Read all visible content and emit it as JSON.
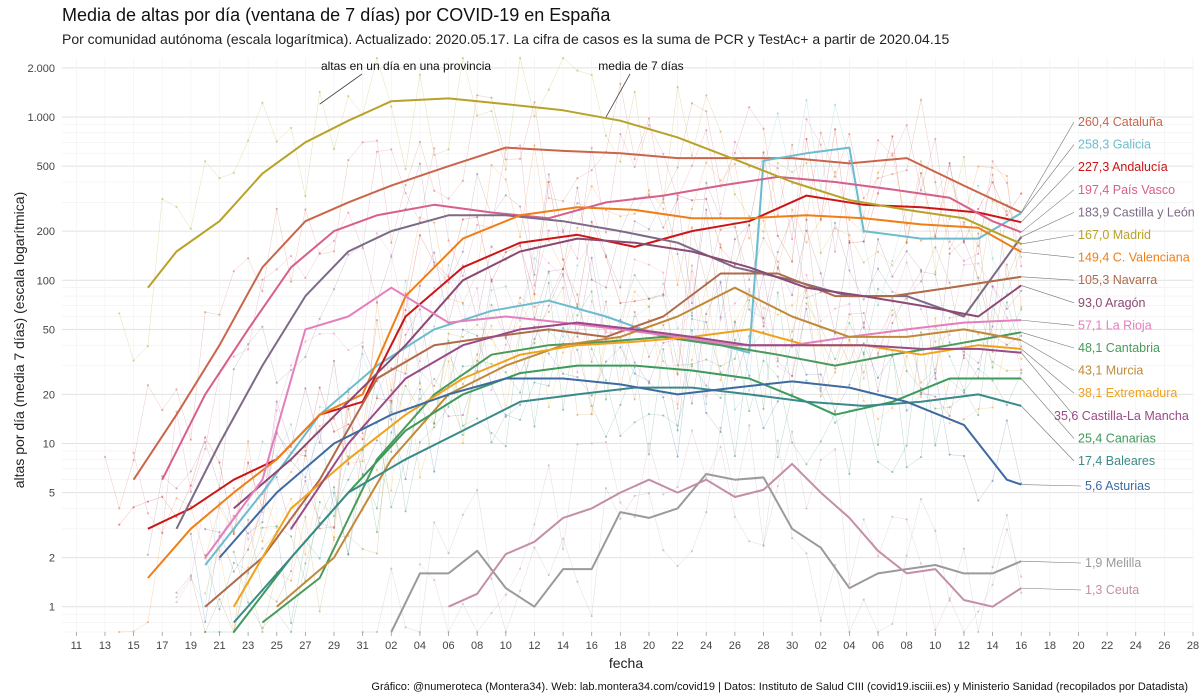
{
  "chart_data": {
    "type": "line",
    "title": "Media de altas por día (ventana de 7 días) por COVID-19 en España",
    "subtitle": "Por comunidad autónoma (escala logarítmica). Actualizado: 2020.05.17. La cifra de casos es la suma de PCR y TestAc+ a partir de 2020.04.15",
    "xlabel": "fecha",
    "ylabel": "altas por día (media 7 días) (escala logarítmica)",
    "caption": "Gráfico: @numeroteca (Montera34). Web: lab.montera34.com/covid19 | Datos: Instituto de Salud CIII (covid19.isciii.es) y Ministerio Sanidad (recopilados por Datadista)",
    "y_scale": "log",
    "ylim": [
      0.7,
      2300
    ],
    "xlim": [
      "2020-03-10",
      "2020-05-28"
    ],
    "grid": true,
    "x_tick_labels": [
      "11",
      "13",
      "15",
      "17",
      "19",
      "21",
      "23",
      "25",
      "27",
      "29",
      "31",
      "02",
      "04",
      "06",
      "08",
      "10",
      "12",
      "14",
      "16",
      "18",
      "20",
      "22",
      "24",
      "26",
      "28",
      "30",
      "02",
      "04",
      "06",
      "08",
      "10",
      "12",
      "14",
      "16",
      "18",
      "20",
      "22",
      "24",
      "26",
      "28"
    ],
    "x_tick_dates": [
      "2020-03-11",
      "2020-03-13",
      "2020-03-15",
      "2020-03-17",
      "2020-03-19",
      "2020-03-21",
      "2020-03-23",
      "2020-03-25",
      "2020-03-27",
      "2020-03-29",
      "2020-03-31",
      "2020-04-02",
      "2020-04-04",
      "2020-04-06",
      "2020-04-08",
      "2020-04-10",
      "2020-04-12",
      "2020-04-14",
      "2020-04-16",
      "2020-04-18",
      "2020-04-20",
      "2020-04-22",
      "2020-04-24",
      "2020-04-26",
      "2020-04-28",
      "2020-04-30",
      "2020-05-02",
      "2020-05-04",
      "2020-05-06",
      "2020-05-08",
      "2020-05-10",
      "2020-05-12",
      "2020-05-14",
      "2020-05-16",
      "2020-05-18",
      "2020-05-20",
      "2020-05-22",
      "2020-05-24",
      "2020-05-26",
      "2020-05-28"
    ],
    "y_ticks": [
      1,
      2,
      5,
      10,
      20,
      50,
      100,
      200,
      500,
      1000,
      2000
    ],
    "y_tick_labels": [
      "1",
      "2",
      "5",
      "10",
      "20",
      "50",
      "100",
      "200",
      "500",
      "1.000",
      "2.000"
    ],
    "annotations": [
      {
        "text": "altas en un día en una provincia",
        "x": "2020-03-28",
        "y": 1200
      },
      {
        "text": "media de 7 días",
        "x": "2020-04-17",
        "y": 1000
      }
    ],
    "series": [
      {
        "label": "260,4 Cataluña",
        "color": "#c9654a",
        "x": [
          "2020-03-15",
          "2020-03-18",
          "2020-03-21",
          "2020-03-24",
          "2020-03-27",
          "2020-03-30",
          "2020-04-02",
          "2020-04-06",
          "2020-04-10",
          "2020-04-14",
          "2020-04-18",
          "2020-04-22",
          "2020-04-26",
          "2020-04-30",
          "2020-05-04",
          "2020-05-08",
          "2020-05-12",
          "2020-05-16"
        ],
        "y": [
          6,
          15,
          40,
          120,
          230,
          300,
          380,
          500,
          650,
          620,
          600,
          560,
          560,
          560,
          520,
          560,
          380,
          260
        ]
      },
      {
        "label": "258,3 Galicia",
        "color": "#6cbccf",
        "x": [
          "2020-03-20",
          "2020-03-24",
          "2020-03-28",
          "2020-04-01",
          "2020-04-05",
          "2020-04-09",
          "2020-04-13",
          "2020-04-17",
          "2020-04-21",
          "2020-04-25",
          "2020-04-27",
          "2020-04-28",
          "2020-05-01",
          "2020-05-04",
          "2020-05-05",
          "2020-05-09",
          "2020-05-13",
          "2020-05-16"
        ],
        "y": [
          1.8,
          5,
          15,
          30,
          50,
          65,
          75,
          60,
          45,
          40,
          36,
          540,
          600,
          650,
          200,
          180,
          180,
          258
        ]
      },
      {
        "label": "227,3 Andalucía",
        "color": "#cc1616",
        "x": [
          "2020-03-16",
          "2020-03-19",
          "2020-03-22",
          "2020-03-25",
          "2020-03-28",
          "2020-03-31",
          "2020-04-03",
          "2020-04-07",
          "2020-04-11",
          "2020-04-15",
          "2020-04-19",
          "2020-04-23",
          "2020-04-27",
          "2020-05-01",
          "2020-05-05",
          "2020-05-09",
          "2020-05-13",
          "2020-05-16"
        ],
        "y": [
          3,
          4,
          6,
          8,
          15,
          18,
          60,
          120,
          170,
          190,
          160,
          200,
          230,
          330,
          290,
          280,
          260,
          227
        ]
      },
      {
        "label": "197,4 País Vasco",
        "color": "#d75f8c",
        "x": [
          "2020-03-17",
          "2020-03-20",
          "2020-03-23",
          "2020-03-26",
          "2020-03-29",
          "2020-04-01",
          "2020-04-05",
          "2020-04-09",
          "2020-04-13",
          "2020-04-17",
          "2020-04-21",
          "2020-04-25",
          "2020-04-29",
          "2020-05-03",
          "2020-05-07",
          "2020-05-11",
          "2020-05-14",
          "2020-05-16"
        ],
        "y": [
          6,
          20,
          50,
          120,
          200,
          250,
          290,
          260,
          240,
          300,
          330,
          380,
          430,
          400,
          360,
          320,
          230,
          197
        ]
      },
      {
        "label": "183,9 Castilla y León",
        "color": "#7d6a86",
        "x": [
          "2020-03-18",
          "2020-03-21",
          "2020-03-24",
          "2020-03-27",
          "2020-03-30",
          "2020-04-02",
          "2020-04-06",
          "2020-04-10",
          "2020-04-14",
          "2020-04-18",
          "2020-04-22",
          "2020-04-26",
          "2020-04-30",
          "2020-05-04",
          "2020-05-08",
          "2020-05-12",
          "2020-05-16"
        ],
        "y": [
          3,
          10,
          30,
          80,
          150,
          200,
          250,
          250,
          230,
          200,
          170,
          120,
          100,
          80,
          80,
          60,
          184
        ]
      },
      {
        "label": "167,0 Madrid",
        "color": "#b8a227",
        "x": [
          "2020-03-16",
          "2020-03-18",
          "2020-03-21",
          "2020-03-24",
          "2020-03-27",
          "2020-03-30",
          "2020-04-02",
          "2020-04-06",
          "2020-04-10",
          "2020-04-14",
          "2020-04-18",
          "2020-04-22",
          "2020-04-26",
          "2020-04-30",
          "2020-05-04",
          "2020-05-08",
          "2020-05-12",
          "2020-05-16"
        ],
        "y": [
          90,
          150,
          230,
          450,
          700,
          950,
          1250,
          1300,
          1200,
          1100,
          950,
          750,
          550,
          400,
          310,
          270,
          240,
          167
        ]
      },
      {
        "label": "149,4 C. Valenciana",
        "color": "#f07e16",
        "x": [
          "2020-03-16",
          "2020-03-19",
          "2020-03-22",
          "2020-03-25",
          "2020-03-28",
          "2020-03-31",
          "2020-04-03",
          "2020-04-07",
          "2020-04-11",
          "2020-04-15",
          "2020-04-19",
          "2020-04-23",
          "2020-04-27",
          "2020-05-01",
          "2020-05-05",
          "2020-05-09",
          "2020-05-13",
          "2020-05-16"
        ],
        "y": [
          1.5,
          3,
          5,
          8,
          15,
          20,
          80,
          180,
          250,
          280,
          270,
          240,
          240,
          250,
          240,
          220,
          210,
          149
        ]
      },
      {
        "label": "105,3 Navarra",
        "color": "#b06a4a",
        "x": [
          "2020-03-20",
          "2020-03-24",
          "2020-03-28",
          "2020-04-01",
          "2020-04-05",
          "2020-04-09",
          "2020-04-13",
          "2020-04-17",
          "2020-04-21",
          "2020-04-25",
          "2020-04-29",
          "2020-05-03",
          "2020-05-07",
          "2020-05-11",
          "2020-05-16"
        ],
        "y": [
          1,
          2,
          6,
          25,
          40,
          45,
          50,
          45,
          60,
          110,
          110,
          80,
          80,
          90,
          105
        ]
      },
      {
        "label": "93,0 Aragón",
        "color": "#8a4a73",
        "x": [
          "2020-03-22",
          "2020-03-26",
          "2020-03-30",
          "2020-04-03",
          "2020-04-07",
          "2020-04-11",
          "2020-04-15",
          "2020-04-19",
          "2020-04-23",
          "2020-04-27",
          "2020-05-01",
          "2020-05-05",
          "2020-05-09",
          "2020-05-13",
          "2020-05-16"
        ],
        "y": [
          4,
          8,
          18,
          40,
          100,
          150,
          180,
          170,
          150,
          120,
          90,
          80,
          70,
          60,
          93
        ]
      },
      {
        "label": "57,1 La Rioja",
        "color": "#e47fbd",
        "x": [
          "2020-03-20",
          "2020-03-24",
          "2020-03-27",
          "2020-03-30",
          "2020-04-02",
          "2020-04-06",
          "2020-04-10",
          "2020-04-14",
          "2020-04-18",
          "2020-04-22",
          "2020-04-26",
          "2020-04-30",
          "2020-05-04",
          "2020-05-08",
          "2020-05-12",
          "2020-05-16"
        ],
        "y": [
          2,
          6,
          50,
          60,
          90,
          55,
          60,
          55,
          50,
          45,
          40,
          40,
          45,
          50,
          55,
          57
        ]
      },
      {
        "label": "48,1 Cantabria",
        "color": "#4a9a5a",
        "x": [
          "2020-03-24",
          "2020-03-28",
          "2020-04-01",
          "2020-04-05",
          "2020-04-09",
          "2020-04-13",
          "2020-04-17",
          "2020-04-21",
          "2020-04-25",
          "2020-04-29",
          "2020-05-03",
          "2020-05-07",
          "2020-05-11",
          "2020-05-16"
        ],
        "y": [
          0.8,
          1.5,
          8,
          20,
          35,
          40,
          42,
          45,
          40,
          35,
          30,
          35,
          40,
          48
        ]
      },
      {
        "label": "43,1 Murcia",
        "color": "#c08a3a",
        "x": [
          "2020-03-25",
          "2020-03-29",
          "2020-04-02",
          "2020-04-06",
          "2020-04-10",
          "2020-04-14",
          "2020-04-18",
          "2020-04-22",
          "2020-04-26",
          "2020-04-30",
          "2020-05-04",
          "2020-05-08",
          "2020-05-12",
          "2020-05-16"
        ],
        "y": [
          1,
          2,
          8,
          20,
          30,
          40,
          45,
          60,
          90,
          60,
          45,
          45,
          50,
          43
        ]
      },
      {
        "label": "38,1 Extremadura",
        "color": "#f0a21a",
        "x": [
          "2020-03-22",
          "2020-03-26",
          "2020-03-30",
          "2020-04-03",
          "2020-04-07",
          "2020-04-11",
          "2020-04-15",
          "2020-04-19",
          "2020-04-23",
          "2020-04-27",
          "2020-05-01",
          "2020-05-05",
          "2020-05-09",
          "2020-05-13",
          "2020-05-16"
        ],
        "y": [
          1,
          4,
          8,
          15,
          25,
          35,
          40,
          42,
          45,
          50,
          40,
          40,
          35,
          40,
          38
        ]
      },
      {
        "label": "35,6 Castilla-La Mancha",
        "color": "#9a4a88",
        "x": [
          "2020-03-26",
          "2020-03-30",
          "2020-04-03",
          "2020-04-07",
          "2020-04-11",
          "2020-04-15",
          "2020-04-19",
          "2020-04-23",
          "2020-04-27",
          "2020-05-01",
          "2020-05-05",
          "2020-05-09",
          "2020-05-13",
          "2020-05-16"
        ],
        "y": [
          3,
          10,
          25,
          40,
          50,
          55,
          50,
          45,
          40,
          40,
          40,
          38,
          38,
          36
        ]
      },
      {
        "label": "25,4 Canarias",
        "color": "#3d9a5a",
        "x": [
          "2020-03-22",
          "2020-03-26",
          "2020-03-30",
          "2020-04-03",
          "2020-04-07",
          "2020-04-11",
          "2020-04-15",
          "2020-04-19",
          "2020-04-23",
          "2020-04-27",
          "2020-05-01",
          "2020-05-03",
          "2020-05-07",
          "2020-05-11",
          "2020-05-16"
        ],
        "y": [
          0.7,
          2,
          5,
          12,
          20,
          27,
          30,
          30,
          28,
          25,
          18,
          15,
          18,
          25,
          25
        ]
      },
      {
        "label": "17,4 Baleares",
        "color": "#3a8a8a",
        "x": [
          "2020-03-22",
          "2020-03-26",
          "2020-03-30",
          "2020-04-03",
          "2020-04-07",
          "2020-04-11",
          "2020-04-15",
          "2020-04-19",
          "2020-04-23",
          "2020-04-27",
          "2020-05-01",
          "2020-05-05",
          "2020-05-09",
          "2020-05-13",
          "2020-05-16"
        ],
        "y": [
          0.8,
          2,
          5,
          8,
          12,
          18,
          20,
          22,
          22,
          20,
          18,
          17,
          18,
          20,
          17
        ]
      },
      {
        "label": "5,6 Asturias",
        "color": "#3d6aa0",
        "x": [
          "2020-03-21",
          "2020-03-25",
          "2020-03-29",
          "2020-04-02",
          "2020-04-06",
          "2020-04-10",
          "2020-04-14",
          "2020-04-18",
          "2020-04-22",
          "2020-04-26",
          "2020-04-30",
          "2020-05-04",
          "2020-05-08",
          "2020-05-12",
          "2020-05-15",
          "2020-05-16"
        ],
        "y": [
          2,
          5,
          10,
          15,
          20,
          25,
          25,
          23,
          20,
          22,
          24,
          22,
          18,
          13,
          6,
          5.6
        ]
      },
      {
        "label": "1,9 Melilla",
        "color": "#9a9a9a",
        "x": [
          "2020-04-02",
          "2020-04-04",
          "2020-04-06",
          "2020-04-08",
          "2020-04-10",
          "2020-04-12",
          "2020-04-14",
          "2020-04-16",
          "2020-04-18",
          "2020-04-20",
          "2020-04-22",
          "2020-04-24",
          "2020-04-26",
          "2020-04-28",
          "2020-04-30",
          "2020-05-02",
          "2020-05-04",
          "2020-05-06",
          "2020-05-08",
          "2020-05-10",
          "2020-05-12",
          "2020-05-14",
          "2020-05-16"
        ],
        "y": [
          0.7,
          1.6,
          1.6,
          2.2,
          1.3,
          1,
          1.7,
          1.7,
          3.8,
          3.5,
          4,
          6.5,
          6,
          6.2,
          3,
          2.3,
          1.3,
          1.6,
          1.7,
          1.8,
          1.6,
          1.6,
          1.9
        ]
      },
      {
        "label": "1,3 Ceuta",
        "color": "#c48ea8",
        "x": [
          "2020-04-06",
          "2020-04-08",
          "2020-04-10",
          "2020-04-12",
          "2020-04-14",
          "2020-04-16",
          "2020-04-18",
          "2020-04-20",
          "2020-04-22",
          "2020-04-24",
          "2020-04-26",
          "2020-04-28",
          "2020-04-30",
          "2020-05-02",
          "2020-05-04",
          "2020-05-06",
          "2020-05-08",
          "2020-05-10",
          "2020-05-12",
          "2020-05-14",
          "2020-05-16"
        ],
        "y": [
          1,
          1.2,
          2.1,
          2.5,
          3.5,
          4,
          5,
          6,
          5,
          6,
          4.7,
          5.2,
          7.5,
          5,
          3.5,
          2.2,
          1.6,
          1.7,
          1.1,
          1,
          1.3
        ]
      }
    ]
  }
}
